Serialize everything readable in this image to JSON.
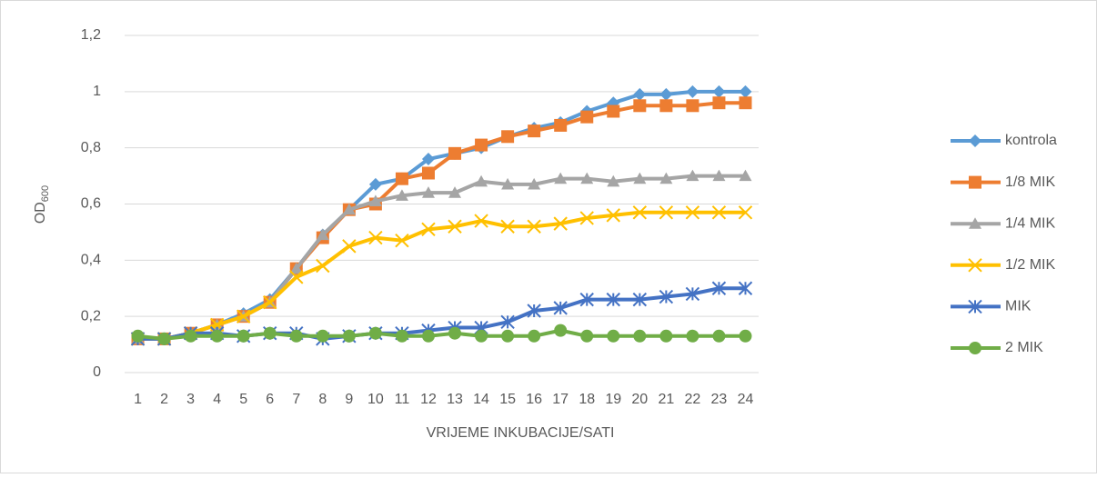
{
  "chart_data": {
    "type": "line",
    "x_label": "VRIJEME INKUBACIJE/SATI",
    "y_label": "OD",
    "y_label_sub": "600",
    "categories": [
      "1",
      "2",
      "3",
      "4",
      "5",
      "6",
      "7",
      "8",
      "9",
      "10",
      "11",
      "12",
      "13",
      "14",
      "15",
      "16",
      "17",
      "18",
      "19",
      "20",
      "21",
      "22",
      "23",
      "24"
    ],
    "ylim": [
      0,
      1.2
    ],
    "yticks": [
      0,
      {
        "value": 0.2,
        "label": "0,2"
      },
      {
        "value": 0.4,
        "label": "0,4"
      },
      {
        "value": 0.6,
        "label": "0,6"
      },
      {
        "value": 0.8,
        "label": "0,8"
      },
      1,
      {
        "value": 1.2,
        "label": "1,2"
      }
    ],
    "grid": true,
    "legend": "right",
    "series": [
      {
        "name": "kontrola",
        "color": "#5b9bd5",
        "marker": "diamond",
        "values": [
          0.12,
          0.12,
          0.14,
          0.17,
          0.21,
          0.26,
          0.37,
          0.49,
          0.58,
          0.67,
          0.69,
          0.76,
          0.78,
          0.8,
          0.84,
          0.87,
          0.89,
          0.93,
          0.96,
          0.99,
          0.99,
          1.0,
          1.0,
          1.0
        ]
      },
      {
        "name": "1/8 MIK",
        "color": "#ed7d31",
        "marker": "square",
        "values": [
          0.12,
          0.12,
          0.14,
          0.17,
          0.2,
          0.25,
          0.37,
          0.48,
          0.58,
          0.6,
          0.69,
          0.71,
          0.78,
          0.81,
          0.84,
          0.86,
          0.88,
          0.91,
          0.93,
          0.95,
          0.95,
          0.95,
          0.96,
          0.96
        ]
      },
      {
        "name": "1/4 MIK",
        "color": "#a5a5a5",
        "marker": "triangle",
        "values": [
          0.12,
          0.12,
          0.14,
          0.17,
          0.2,
          0.25,
          0.37,
          0.49,
          0.58,
          0.61,
          0.63,
          0.64,
          0.64,
          0.68,
          0.67,
          0.67,
          0.69,
          0.69,
          0.68,
          0.69,
          0.69,
          0.7,
          0.7,
          0.7
        ]
      },
      {
        "name": "1/2 MIK",
        "color": "#ffc000",
        "marker": "x",
        "values": [
          0.12,
          0.12,
          0.14,
          0.17,
          0.2,
          0.25,
          0.34,
          0.38,
          0.45,
          0.48,
          0.47,
          0.51,
          0.52,
          0.54,
          0.52,
          0.52,
          0.53,
          0.55,
          0.56,
          0.57,
          0.57,
          0.57,
          0.57,
          0.57
        ]
      },
      {
        "name": "MIK",
        "color": "#4472c4",
        "marker": "star",
        "values": [
          0.12,
          0.12,
          0.14,
          0.14,
          0.13,
          0.14,
          0.14,
          0.12,
          0.13,
          0.14,
          0.14,
          0.15,
          0.16,
          0.16,
          0.18,
          0.22,
          0.23,
          0.26,
          0.26,
          0.26,
          0.27,
          0.28,
          0.3,
          0.3
        ]
      },
      {
        "name": "2 MIK",
        "color": "#70ad47",
        "marker": "circle",
        "values": [
          0.13,
          0.12,
          0.13,
          0.13,
          0.13,
          0.14,
          0.13,
          0.13,
          0.13,
          0.14,
          0.13,
          0.13,
          0.14,
          0.13,
          0.13,
          0.13,
          0.15,
          0.13,
          0.13,
          0.13,
          0.13,
          0.13,
          0.13,
          0.13
        ]
      }
    ]
  }
}
